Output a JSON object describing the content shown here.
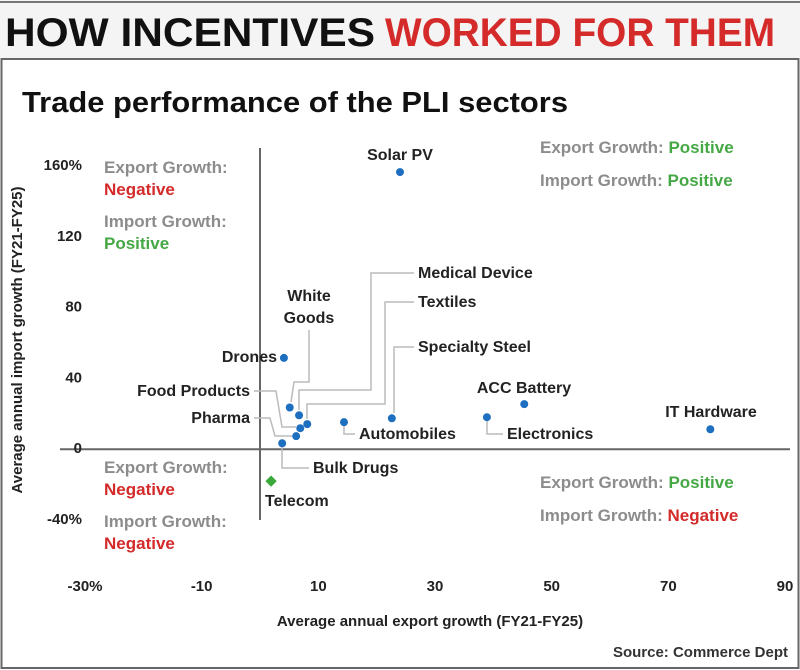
{
  "header": {
    "title_part1": "HOW INCENTIVES",
    "title_part2": "WORKED FOR THEM"
  },
  "source": "Source: Commerce Dept",
  "colors": {
    "point": "#1f6fc0",
    "telecom": "#3aa83a",
    "negative": "#d42a2a",
    "positive": "#45a845",
    "quadrant_label": "#8c8c8c",
    "title_accent": "#d42a2a"
  },
  "quadrants": {
    "top_left": {
      "export_label": "Export Growth:",
      "export_value": "Negative",
      "import_label": "Import Growth:",
      "import_value": "Positive"
    },
    "top_right": {
      "export_label": "Export Growth:",
      "export_value": "Positive",
      "import_label": "Import Growth:",
      "import_value": "Positive"
    },
    "bottom_left": {
      "export_label": "Export Growth:",
      "export_value": "Negative",
      "import_label": "Import Growth:",
      "import_value": "Negative"
    },
    "bottom_right": {
      "export_label": "Export Growth:",
      "export_value": "Positive",
      "import_label": "Import Growth:",
      "import_value": "Negative"
    }
  },
  "chart_data": {
    "type": "scatter",
    "title": "Trade performance of the PLI sectors",
    "xlabel": "Average annual export growth (FY21-FY25)",
    "ylabel": "Average annual import growth (FY21-FY25)",
    "xlim": [
      -30,
      90
    ],
    "ylim": [
      -40,
      160
    ],
    "x_ticks": [
      "-30%",
      "-10",
      "10",
      "30",
      "50",
      "70",
      "90"
    ],
    "x_tick_values": [
      -30,
      -10,
      10,
      30,
      50,
      70,
      90
    ],
    "y_ticks": [
      "160%",
      "120",
      "80",
      "40",
      "0",
      "-40%"
    ],
    "y_tick_values": [
      160,
      120,
      80,
      40,
      0,
      -40
    ],
    "grid": false,
    "points": [
      {
        "name": "Solar PV",
        "x": 24,
        "y": 156
      },
      {
        "name": "Drones",
        "x": 4.1,
        "y": 51
      },
      {
        "name": "White Goods",
        "x": 5.1,
        "y": 23
      },
      {
        "name": "Medical Device",
        "x": 6.7,
        "y": 18.6
      },
      {
        "name": "Textiles",
        "x": 8.1,
        "y": 13.6
      },
      {
        "name": "Specialty Steel",
        "x": 22.6,
        "y": 16.9
      },
      {
        "name": "Food Products",
        "x": 6.9,
        "y": 11.3
      },
      {
        "name": "Pharma",
        "x": 6.2,
        "y": 6.8
      },
      {
        "name": "Bulk Drugs",
        "x": 3.8,
        "y": 2.8
      },
      {
        "name": "Automobiles",
        "x": 14.4,
        "y": 14.7
      },
      {
        "name": "Electronics",
        "x": 38.9,
        "y": 17.5
      },
      {
        "name": "ACC Battery",
        "x": 45.3,
        "y": 24.9
      },
      {
        "name": "IT Hardware",
        "x": 77.2,
        "y": 10.7
      },
      {
        "name": "Telecom",
        "x": 1.9,
        "y": -18.6,
        "highlight": true
      }
    ]
  }
}
